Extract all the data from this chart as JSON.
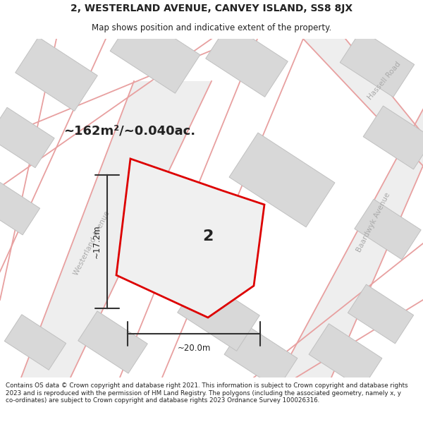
{
  "title": "2, WESTERLAND AVENUE, CANVEY ISLAND, SS8 8JX",
  "subtitle": "Map shows position and indicative extent of the property.",
  "area_label": "~162m²/~0.040ac.",
  "width_label": "~20.0m",
  "height_label": "~17.2m",
  "plot_number": "2",
  "footer": "Contains OS data © Crown copyright and database right 2021. This information is subject to Crown copyright and database rights 2023 and is reproduced with the permission of HM Land Registry. The polygons (including the associated geometry, namely x, y co-ordinates) are subject to Crown copyright and database rights 2023 Ordnance Survey 100026316.",
  "bg_color": "#ffffff",
  "map_bg": "#f8f8f8",
  "road_line_color": "#e8a0a0",
  "plot_fill": "#f0f0f0",
  "plot_outline": "#dd0000",
  "dark_text": "#222222",
  "building_fill": "#d8d8d8",
  "building_edge": "#c0c0c0",
  "dim_color": "#333333"
}
